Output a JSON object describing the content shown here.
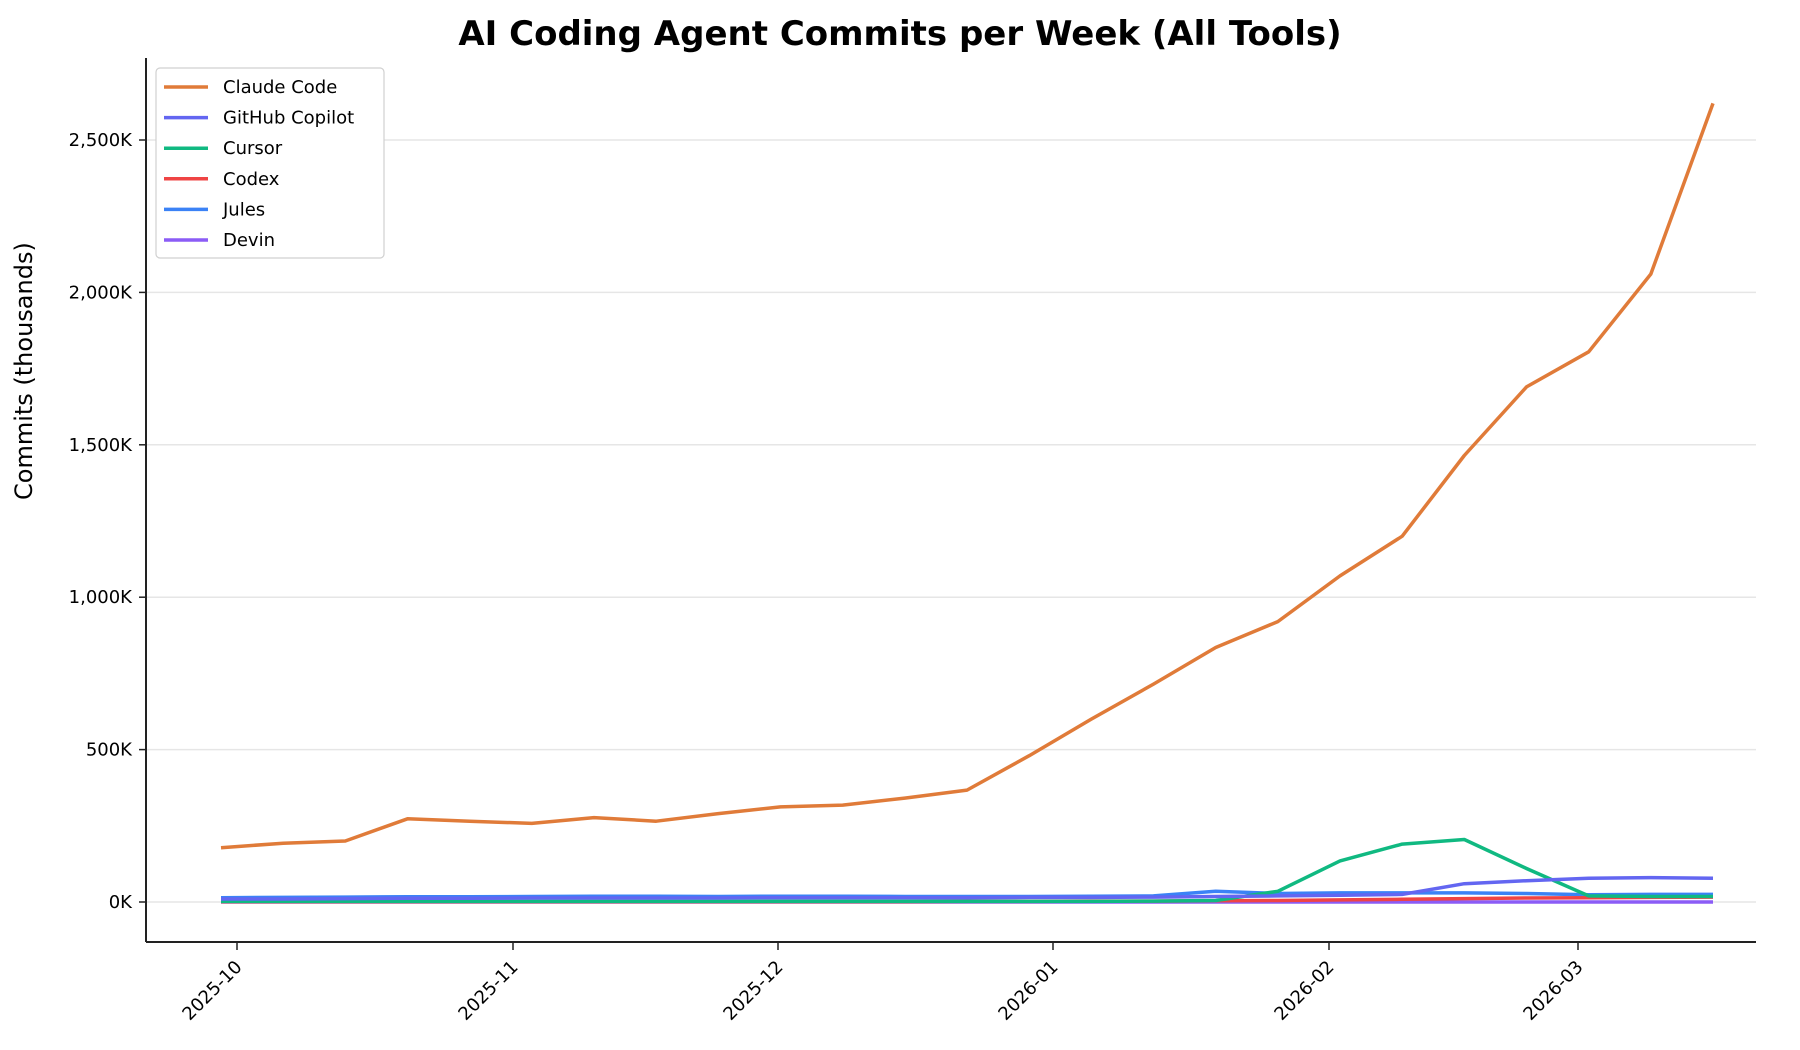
{
  "chart_data": {
    "type": "line",
    "title": "AI Coding Agent Commits per Week (All Tools)",
    "xlabel": "",
    "ylabel": "Commits (thousands)",
    "ylim": [
      -130,
      2750
    ],
    "yticks": [
      0,
      500,
      1000,
      1500,
      2000,
      2500
    ],
    "ytick_labels": [
      "0K",
      "500K",
      "1,000K",
      "1,500K",
      "2,000K",
      "2,500K"
    ],
    "xtick_labels": [
      "2025-10",
      "2025-11",
      "2025-12",
      "2026-01",
      "2026-02",
      "2026-03"
    ],
    "grid": "horizontal",
    "legend_position": "upper left",
    "x": [
      "2025-09-29",
      "2025-10-06",
      "2025-10-13",
      "2025-10-20",
      "2025-10-27",
      "2025-11-03",
      "2025-11-10",
      "2025-11-17",
      "2025-11-24",
      "2025-12-01",
      "2025-12-08",
      "2025-12-15",
      "2025-12-22",
      "2025-12-29",
      "2026-01-05",
      "2026-01-12",
      "2026-01-19",
      "2026-01-26",
      "2026-02-02",
      "2026-02-09",
      "2026-02-16",
      "2026-02-23",
      "2026-03-02",
      "2026-03-09",
      "2026-03-16"
    ],
    "series": [
      {
        "name": "Claude Code",
        "color": "#E07B39",
        "values": [
          178,
          193,
          200,
          273,
          265,
          258,
          277,
          265,
          290,
          312,
          318,
          341,
          367,
          480,
          600,
          715,
          835,
          920,
          1070,
          1200,
          1465,
          1690,
          1805,
          2060,
          2620
        ]
      },
      {
        "name": "GitHub Copilot",
        "color": "#6366F1",
        "values": [
          10,
          10,
          11,
          12,
          12,
          13,
          13,
          13,
          13,
          14,
          14,
          14,
          14,
          15,
          15,
          16,
          18,
          20,
          22,
          25,
          60,
          70,
          78,
          80,
          78
        ]
      },
      {
        "name": "Cursor",
        "color": "#10B981",
        "values": [
          2,
          2,
          2,
          2,
          2,
          2,
          2,
          2,
          2,
          2,
          2,
          2,
          2,
          2,
          2,
          3,
          5,
          35,
          135,
          190,
          205,
          110,
          20,
          18,
          18
        ]
      },
      {
        "name": "Codex",
        "color": "#EF4444",
        "values": [
          1,
          1,
          1,
          1,
          1,
          1,
          1,
          1,
          1,
          1,
          1,
          1,
          2,
          2,
          3,
          3,
          4,
          5,
          7,
          9,
          11,
          13,
          14,
          15,
          16
        ]
      },
      {
        "name": "Jules",
        "color": "#3B82F6",
        "values": [
          14,
          15,
          16,
          17,
          17,
          18,
          19,
          19,
          18,
          19,
          19,
          18,
          18,
          18,
          19,
          20,
          35,
          28,
          30,
          30,
          30,
          28,
          24,
          25,
          25
        ]
      },
      {
        "name": "Devin",
        "color": "#8B5CF6",
        "values": [
          0,
          0,
          0,
          0,
          0,
          0,
          0,
          0,
          0,
          0,
          0,
          0,
          0,
          0,
          0,
          0,
          0,
          0,
          0,
          0,
          0,
          0,
          0,
          0,
          0
        ]
      }
    ]
  },
  "legend": {
    "items": [
      {
        "label": "Claude Code",
        "color": "#E07B39"
      },
      {
        "label": "GitHub Copilot",
        "color": "#6366F1"
      },
      {
        "label": "Cursor",
        "color": "#10B981"
      },
      {
        "label": "Codex",
        "color": "#EF4444"
      },
      {
        "label": "Jules",
        "color": "#3B82F6"
      },
      {
        "label": "Devin",
        "color": "#8B5CF6"
      }
    ]
  }
}
